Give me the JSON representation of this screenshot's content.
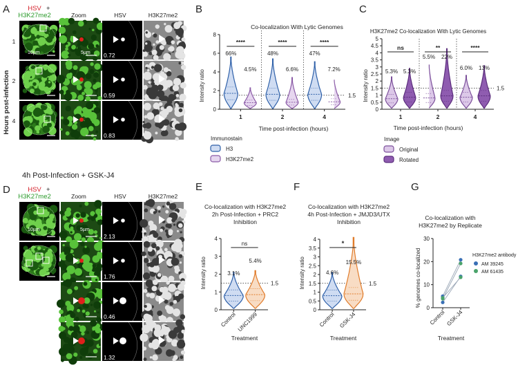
{
  "panel_letters": [
    "A",
    "B",
    "C",
    "D",
    "E",
    "F",
    "G"
  ],
  "panel_a": {
    "title_red": "HSV",
    "title_plus": "+",
    "title_green": "H3K27me2",
    "headers": [
      "Zoom",
      "HSV",
      "H3K27me2"
    ],
    "ylabel": "Hours post-infection",
    "row_labels": [
      "1",
      "2",
      "4"
    ],
    "values": [
      "0.72",
      "0.59",
      "0.83"
    ],
    "scale_labels": [
      "10µm",
      "5µm"
    ]
  },
  "panel_d": {
    "heading": "4h Post-Infection + GSK-J4",
    "title_red": "HSV",
    "title_plus": "+",
    "title_green": "H3K27me2",
    "headers": [
      "Zoom",
      "HSV",
      "H3K27me2"
    ],
    "values": [
      "2.13",
      "1.76",
      "0.46",
      "1.32"
    ],
    "scale_labels": [
      "10µm",
      "5µm"
    ]
  },
  "chart_data": [
    {
      "panel": "B",
      "type": "violin",
      "title": "Co-localization With Lytic Genomes",
      "xlabel": "Time post-infection (hours)",
      "ylabel": "Intensity ratio",
      "ylim": [
        0,
        8
      ],
      "yticks": [
        0,
        2,
        4,
        6,
        8
      ],
      "categories": [
        "1",
        "2",
        "4"
      ],
      "series": [
        {
          "name": "H3",
          "color": "#2d5fa8",
          "fill": "#cfdcf2",
          "max": [
            5.6,
            5.4,
            5.1
          ],
          "median": [
            1.7,
            1.6,
            1.6
          ],
          "percent": [
            "66%",
            "48%",
            "47%"
          ]
        },
        {
          "name": "H3K27me2",
          "color": "#8a5aa6",
          "fill": "#e6d6ef",
          "max": [
            2.3,
            3.4,
            3.3
          ],
          "median": [
            0.7,
            0.75,
            0.8
          ],
          "percent": [
            "4.5%",
            "6.6%",
            "7.2%"
          ]
        }
      ],
      "threshold": 1.5,
      "threshold_label": "1.5",
      "significance": [
        "****",
        "****",
        "****"
      ],
      "legend_title": "Immunostain",
      "legend": [
        "H3",
        "H3K27me2"
      ]
    },
    {
      "panel": "C",
      "type": "violin",
      "title": "H3K27me2 Co-localization With Lytic Genomes",
      "xlabel": "Time post-infection (hours)",
      "ylabel": "Intensity ratio",
      "ylim": [
        0,
        5
      ],
      "yticks": [
        0,
        0.5,
        1,
        1.5,
        2,
        2.5,
        3,
        3.5,
        4,
        4.5,
        5
      ],
      "categories": [
        "1",
        "2",
        "4"
      ],
      "series": [
        {
          "name": "Original",
          "color": "#7b4f9a",
          "fill": "#dcc8e8",
          "max": [
            2.3,
            3.3,
            2.4
          ],
          "median": [
            0.75,
            0.8,
            0.85
          ],
          "percent": [
            "5.3%",
            "5.5%",
            "6.0%"
          ]
        },
        {
          "name": "Rotated",
          "color": "#5b2d7c",
          "fill": "#8f5cb0",
          "max": [
            2.9,
            4.3,
            3.1
          ],
          "median": [
            0.85,
            0.95,
            0.95
          ],
          "percent": [
            "5.3%",
            "22%",
            "13%"
          ]
        }
      ],
      "threshold": 1.5,
      "threshold_label": "1.5",
      "significance": [
        "ns",
        "**",
        "****"
      ],
      "legend_title": "Image",
      "legend": [
        "Original",
        "Rotated"
      ]
    },
    {
      "panel": "E",
      "type": "violin",
      "title": "Co-localization with H3K27me2",
      "subtitle": "2h Post-Infection + PRC2",
      "subtitle2": "Inhibition",
      "xlabel": "Treatment",
      "ylabel": "Intensity ratio",
      "ylim": [
        0,
        4
      ],
      "yticks": [
        0,
        1,
        2,
        3,
        4
      ],
      "categories": [
        "Control",
        "UNC1999"
      ],
      "colors": [
        "#2d5fa8",
        "#e07b2a"
      ],
      "fills": [
        "#cfdcf2",
        "#f8dcc4"
      ],
      "max": [
        2.1,
        2.2
      ],
      "median": [
        0.8,
        0.85
      ],
      "percent": [
        "3.1%",
        "5.4%"
      ],
      "threshold": 1.5,
      "threshold_label": "1.5",
      "significance": "ns"
    },
    {
      "panel": "F",
      "type": "violin",
      "title": "Co-localization with H3K27me2",
      "subtitle": "4h Post-Infection + JMJD3/UTX",
      "subtitle2": "Inhibition",
      "xlabel": "Treatment",
      "ylabel": "Intensity ratio",
      "ylim": [
        0,
        4
      ],
      "yticks": [
        0,
        0.5,
        1,
        1.5,
        2,
        2.5,
        3,
        3.5,
        4
      ],
      "categories": [
        "Control",
        "GSK-J4"
      ],
      "colors": [
        "#2d5fa8",
        "#e07b2a"
      ],
      "fills": [
        "#cfdcf2",
        "#f8dcc4"
      ],
      "max": [
        2.1,
        4.1
      ],
      "median": [
        0.8,
        0.9
      ],
      "percent": [
        "4.6%",
        "15.5%"
      ],
      "threshold": 1.5,
      "threshold_label": "1.5",
      "significance": "*"
    },
    {
      "panel": "G",
      "type": "scatter",
      "title": "Co-localization with",
      "title2": "H3K27me2 by Replicate",
      "xlabel": "Treatment",
      "ylabel": "% genomes co-localized",
      "ylim": [
        0,
        30
      ],
      "yticks": [
        0,
        10,
        20,
        30
      ],
      "categories": [
        "Control",
        "GSK-J4"
      ],
      "legend_title": "H3K27me2 antibody",
      "series": [
        {
          "name": "AM 39245",
          "color": "#3a6fb5",
          "pairs": [
            [
              5.0,
              20.8
            ],
            [
              2.3,
              13.6
            ]
          ]
        },
        {
          "name": "AM 61435",
          "color": "#4aa36b",
          "pairs": [
            [
              3.9,
              19.2
            ],
            [
              4.3,
              13.2
            ]
          ]
        }
      ]
    }
  ]
}
